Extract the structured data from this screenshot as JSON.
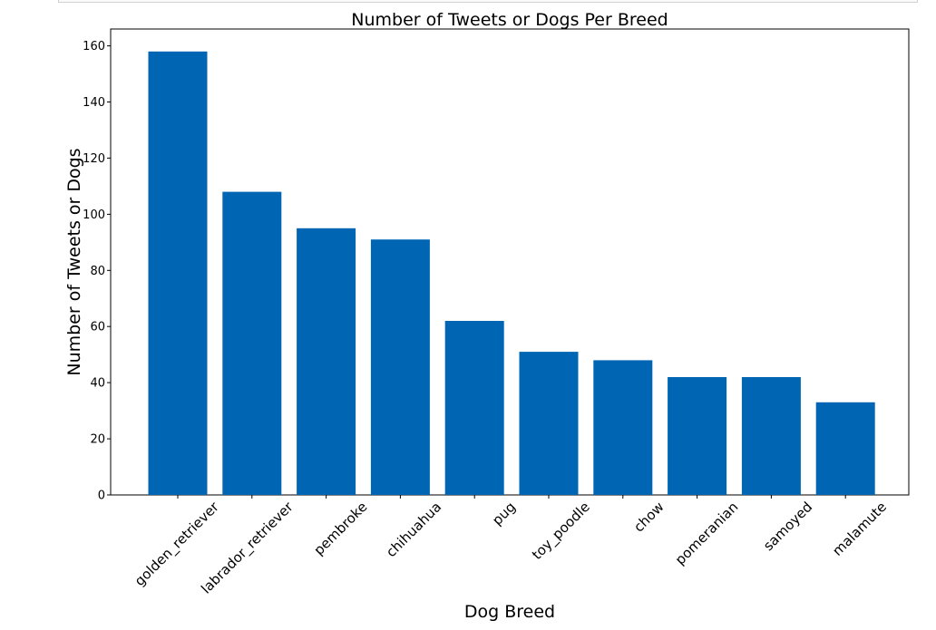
{
  "chart_data": {
    "type": "bar",
    "title": "Number of Tweets or Dogs Per Breed",
    "xlabel": "Dog Breed",
    "ylabel": "Number of Tweets or Dogs",
    "categories": [
      "golden_retriever",
      "labrador_retriever",
      "pembroke",
      "chihuahua",
      "pug",
      "toy_poodle",
      "chow",
      "pomeranian",
      "samoyed",
      "malamute"
    ],
    "values": [
      158,
      108,
      95,
      91,
      62,
      51,
      48,
      42,
      42,
      33
    ],
    "ylim": [
      0,
      166
    ],
    "yticks": [
      0,
      20,
      40,
      60,
      80,
      100,
      120,
      140,
      160
    ],
    "grid": false,
    "bar_color": "#0066b3"
  }
}
